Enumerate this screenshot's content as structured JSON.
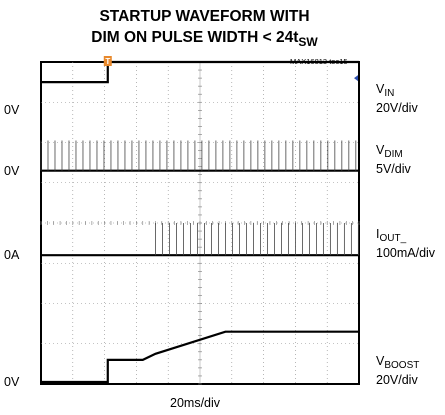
{
  "chart_data": {
    "type": "line",
    "title_line1": "STARTUP WAVEFORM WITH",
    "title_line2_prefix": "DIM ON PULSE WIDTH < 24t",
    "title_line2_sub": "SW",
    "figure_id": "MAX16813 toc15",
    "x_scale": "20ms/div",
    "x_divisions": 8,
    "y_divisions": 8,
    "grid": true,
    "channels": [
      {
        "name_main": "V",
        "name_sub": "IN",
        "scale": "20V/div",
        "zero_label": "0V",
        "zero_div": 6.8,
        "trace": [
          [
            0,
            7.5
          ],
          [
            2.1,
            7.5
          ],
          [
            2.1,
            8.0
          ],
          [
            10,
            8.0
          ]
        ]
      },
      {
        "name_main": "V",
        "name_sub": "DIM",
        "scale": "5V/div",
        "zero_label": "0V",
        "zero_div": 5.3,
        "pulses": {
          "start_div": 0,
          "end_div": 10,
          "period_div": 0.22,
          "height_div": 0.75,
          "width_div": 0.02
        }
      },
      {
        "name_main": "I",
        "name_sub": "OUT_",
        "scale": "100mA/div",
        "zero_label": "0A",
        "zero_div": 3.2,
        "pulses": {
          "start_div": 3.6,
          "end_div": 10,
          "period_div": 0.22,
          "height_div": 0.8,
          "width_div": 0.02
        }
      },
      {
        "name_main": "V",
        "name_sub": "BOOST",
        "scale": "20V/div",
        "zero_label": "0V",
        "zero_div": 0.05,
        "trace": [
          [
            0,
            0.05
          ],
          [
            2.1,
            0.05
          ],
          [
            2.1,
            0.6
          ],
          [
            3.2,
            0.6
          ],
          [
            3.6,
            0.75
          ],
          [
            5.8,
            1.3
          ],
          [
            8.3,
            1.3
          ],
          [
            10,
            1.3
          ]
        ]
      }
    ],
    "trigger_marker": {
      "x_div": 2.1,
      "label": "T"
    }
  }
}
